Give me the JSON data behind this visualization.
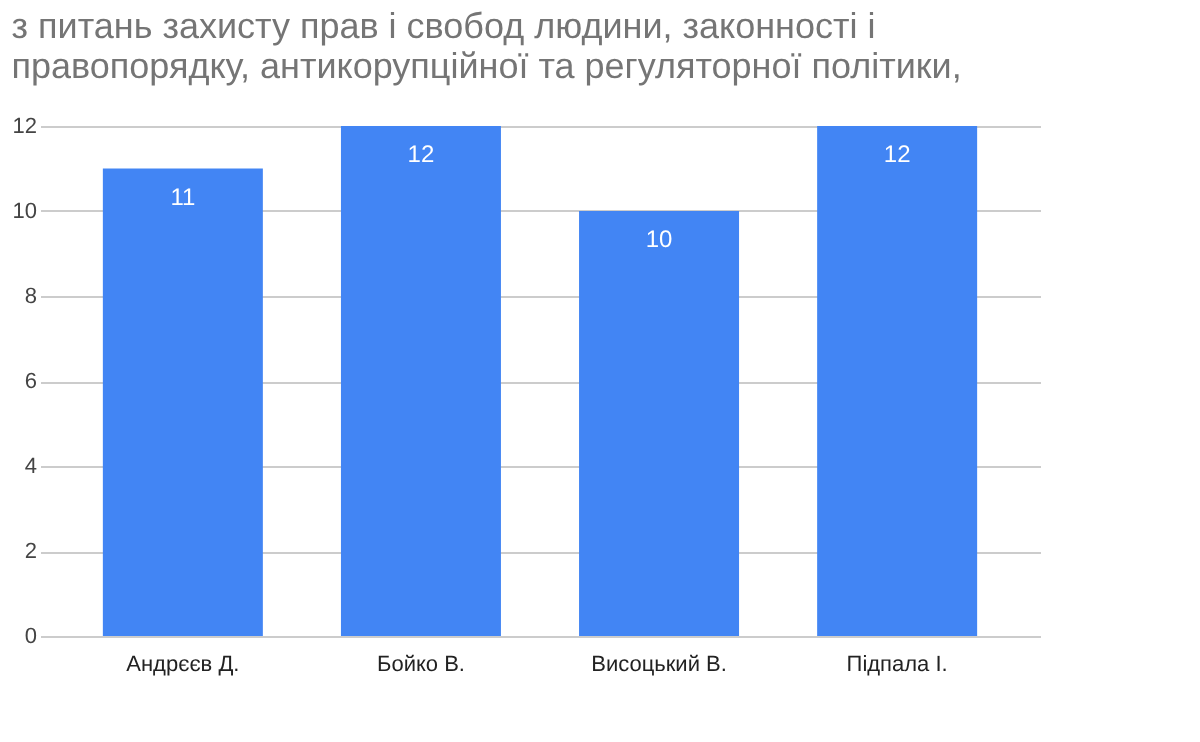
{
  "chart_data": {
    "type": "bar",
    "title": "з питань захисту прав і свобод людини, законності і правопорядку, антикорупційної та регуляторної політики,",
    "categories": [
      "Андрєєв Д.",
      "Бойко В.",
      "Висоцький В.",
      "Підпала І."
    ],
    "values": [
      11,
      12,
      10,
      12
    ],
    "color": "#4285f4",
    "ylim": [
      0,
      12
    ],
    "yticks": [
      0,
      2,
      4,
      6,
      8,
      10,
      12
    ],
    "grid": "y",
    "data_labels": true
  }
}
